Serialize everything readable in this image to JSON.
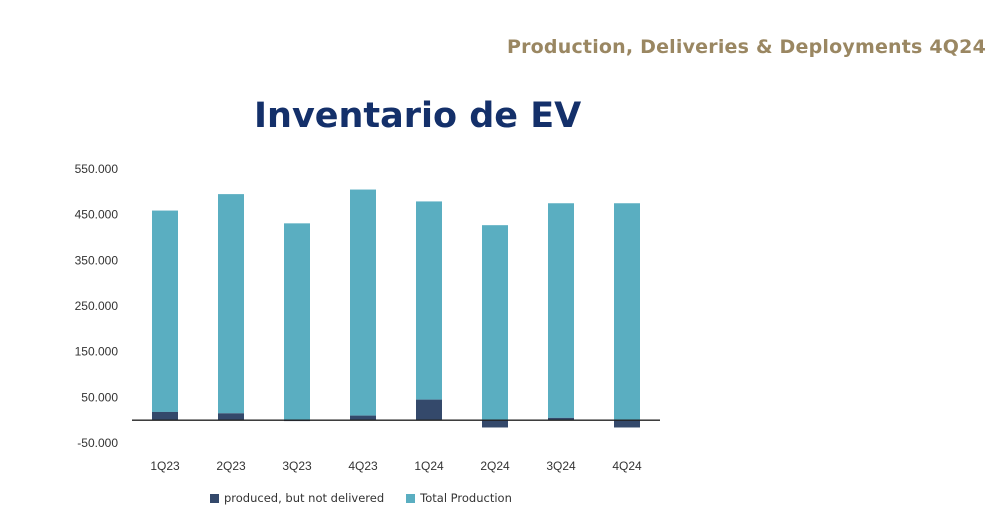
{
  "header": {
    "title": "Production, Deliveries & Deployments 4Q24"
  },
  "chart_data": {
    "type": "bar",
    "title": "Inventario de EV",
    "xlabel": "",
    "ylabel": "",
    "categories": [
      "1Q23",
      "2Q23",
      "3Q23",
      "4Q23",
      "1Q24",
      "2Q24",
      "3Q24",
      "4Q24"
    ],
    "series": [
      {
        "name": "produced, but not delivered",
        "color": "#34496b",
        "values": [
          18000,
          15000,
          -2000,
          10000,
          45000,
          -16000,
          5000,
          -16000
        ]
      },
      {
        "name": "Total Production",
        "color": "#5aaec1",
        "values": [
          441000,
          480000,
          431000,
          495000,
          434000,
          427000,
          470000,
          475000
        ]
      }
    ],
    "yticks": [
      "550.000",
      "450.000",
      "350.000",
      "250.000",
      "150.000",
      "50.000",
      "-50.000"
    ],
    "ylim": [
      -50000,
      550000
    ],
    "stacked": true,
    "grid": false,
    "legend_position": "bottom"
  }
}
